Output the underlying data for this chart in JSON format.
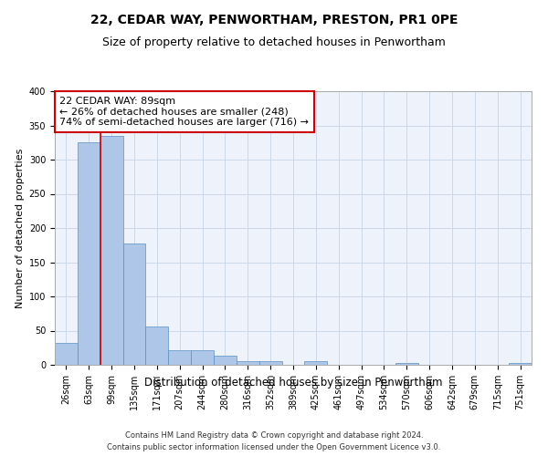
{
  "title": "22, CEDAR WAY, PENWORTHAM, PRESTON, PR1 0PE",
  "subtitle": "Size of property relative to detached houses in Penwortham",
  "xlabel": "Distribution of detached houses by size in Penwortham",
  "ylabel": "Number of detached properties",
  "footnote1": "Contains HM Land Registry data © Crown copyright and database right 2024.",
  "footnote2": "Contains public sector information licensed under the Open Government Licence v3.0.",
  "categories": [
    "26sqm",
    "63sqm",
    "99sqm",
    "135sqm",
    "171sqm",
    "207sqm",
    "244sqm",
    "280sqm",
    "316sqm",
    "352sqm",
    "389sqm",
    "425sqm",
    "461sqm",
    "497sqm",
    "534sqm",
    "570sqm",
    "606sqm",
    "642sqm",
    "679sqm",
    "715sqm",
    "751sqm"
  ],
  "values": [
    32,
    325,
    335,
    178,
    56,
    22,
    22,
    13,
    5,
    5,
    0,
    5,
    0,
    0,
    0,
    3,
    0,
    0,
    0,
    0,
    3
  ],
  "bar_color": "#aec6e8",
  "bar_edge_color": "#5a8fc2",
  "bar_width": 1.0,
  "annotation_line1": "22 CEDAR WAY: 89sqm",
  "annotation_line2": "← 26% of detached houses are smaller (248)",
  "annotation_line3": "74% of semi-detached houses are larger (716) →",
  "ylim": [
    0,
    400
  ],
  "yticks": [
    0,
    50,
    100,
    150,
    200,
    250,
    300,
    350,
    400
  ],
  "grid_color": "#c8d4e8",
  "bg_color": "#eef2fb",
  "annotation_box_color": "#ffffff",
  "annotation_box_edge": "#cc0000",
  "redline_color": "#cc0000",
  "title_fontsize": 10,
  "subtitle_fontsize": 9,
  "annotation_fontsize": 8,
  "xlabel_fontsize": 8.5,
  "ylabel_fontsize": 8,
  "tick_fontsize": 7
}
